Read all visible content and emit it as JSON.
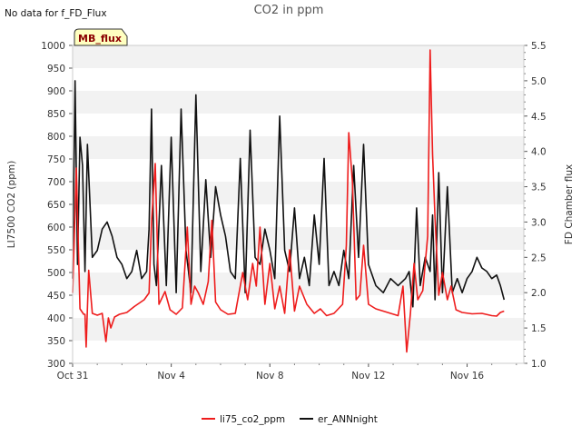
{
  "chart_data": {
    "type": "line",
    "title": "CO2 in ppm",
    "top_left_note": "No data for f_FD_Flux",
    "badge_label": "MB_flux",
    "ylabel": "LI7500 CO2 (ppm)",
    "y2label": "FD Chamber flux",
    "ylim": [
      300,
      1000
    ],
    "y2lim": [
      1.0,
      5.5
    ],
    "xlim": [
      0,
      18.3
    ],
    "yticks": [
      300,
      350,
      400,
      450,
      500,
      550,
      600,
      650,
      700,
      750,
      800,
      850,
      900,
      950,
      1000
    ],
    "y2ticks": [
      "1.0",
      "1.5",
      "2.0",
      "2.5",
      "3.0",
      "3.5",
      "4.0",
      "4.5",
      "5.0",
      "5.5"
    ],
    "xticks": [
      {
        "day": 0,
        "label": "Oct 31"
      },
      {
        "day": 4,
        "label": "Nov 4"
      },
      {
        "day": 8,
        "label": "Nov 8"
      },
      {
        "day": 12,
        "label": "Nov 12"
      },
      {
        "day": 16,
        "label": "Nov 16"
      }
    ],
    "legend_position": "bottom-center",
    "series": [
      {
        "name": "li75_co2_ppm",
        "axis": "left",
        "color": "#ee1c1c",
        "x": [
          0,
          0.15,
          0.3,
          0.45,
          0.5,
          0.55,
          0.65,
          0.8,
          1.0,
          1.2,
          1.35,
          1.45,
          1.55,
          1.7,
          1.9,
          2.2,
          2.5,
          2.9,
          3.1,
          3.2,
          3.35,
          3.5,
          3.75,
          3.95,
          4.2,
          4.45,
          4.65,
          4.8,
          4.95,
          5.1,
          5.3,
          5.5,
          5.65,
          5.8,
          6.0,
          6.3,
          6.6,
          6.9,
          7.1,
          7.3,
          7.45,
          7.6,
          7.8,
          8.0,
          8.2,
          8.4,
          8.6,
          8.8,
          9.0,
          9.2,
          9.5,
          9.8,
          10.05,
          10.3,
          10.6,
          10.95,
          11.1,
          11.2,
          11.35,
          11.5,
          11.65,
          11.8,
          12.0,
          12.3,
          12.6,
          12.9,
          13.2,
          13.4,
          13.55,
          13.7,
          13.85,
          14.0,
          14.2,
          14.4,
          14.5,
          14.6,
          14.7,
          14.85,
          15.0,
          15.2,
          15.35,
          15.55,
          15.8,
          16.2,
          16.6,
          17.0,
          17.2,
          17.35,
          17.5
        ],
        "values": [
          455,
          730,
          420,
          408,
          408,
          336,
          505,
          410,
          406,
          410,
          348,
          400,
          378,
          402,
          408,
          412,
          425,
          440,
          455,
          610,
          740,
          430,
          458,
          418,
          408,
          422,
          600,
          430,
          470,
          455,
          430,
          480,
          615,
          435,
          418,
          408,
          410,
          500,
          440,
          520,
          470,
          600,
          430,
          520,
          420,
          470,
          410,
          550,
          415,
          470,
          430,
          410,
          420,
          405,
          410,
          430,
          560,
          808,
          700,
          440,
          450,
          560,
          430,
          420,
          415,
          410,
          405,
          470,
          325,
          410,
          520,
          440,
          460,
          580,
          990,
          760,
          620,
          450,
          500,
          440,
          470,
          418,
          412,
          409,
          410,
          405,
          404,
          412,
          415
        ]
      },
      {
        "name": "er_ANNnight",
        "axis": "right",
        "color": "#111111",
        "x": [
          0,
          0.1,
          0.2,
          0.3,
          0.4,
          0.5,
          0.6,
          0.8,
          1.0,
          1.2,
          1.4,
          1.6,
          1.8,
          2.0,
          2.2,
          2.4,
          2.6,
          2.8,
          3.0,
          3.1,
          3.2,
          3.3,
          3.4,
          3.6,
          3.8,
          4.0,
          4.2,
          4.4,
          4.6,
          4.8,
          5.0,
          5.2,
          5.4,
          5.6,
          5.8,
          6.0,
          6.2,
          6.4,
          6.6,
          6.8,
          7.0,
          7.2,
          7.4,
          7.6,
          7.8,
          8.0,
          8.2,
          8.4,
          8.6,
          8.8,
          9.0,
          9.2,
          9.4,
          9.6,
          9.8,
          10.0,
          10.2,
          10.4,
          10.6,
          10.8,
          11.0,
          11.2,
          11.4,
          11.6,
          11.8,
          12.0,
          12.3,
          12.6,
          12.9,
          13.2,
          13.5,
          13.65,
          13.8,
          13.95,
          14.1,
          14.3,
          14.5,
          14.6,
          14.7,
          14.85,
          15.0,
          15.2,
          15.4,
          15.6,
          15.8,
          16.0,
          16.2,
          16.4,
          16.6,
          16.8,
          17.0,
          17.2,
          17.35,
          17.5
        ],
        "values": [
          2.2,
          5.0,
          2.4,
          4.2,
          3.8,
          2.3,
          4.1,
          2.5,
          2.6,
          2.9,
          3.0,
          2.8,
          2.5,
          2.4,
          2.2,
          2.3,
          2.6,
          2.2,
          2.3,
          2.9,
          4.6,
          2.4,
          2.1,
          3.8,
          2.1,
          4.2,
          2.0,
          4.6,
          2.6,
          2.0,
          4.8,
          2.3,
          3.6,
          2.5,
          3.5,
          3.1,
          2.8,
          2.3,
          2.2,
          3.9,
          2.0,
          4.3,
          2.5,
          2.4,
          2.9,
          2.6,
          2.2,
          4.5,
          2.6,
          2.3,
          3.2,
          2.2,
          2.5,
          2.1,
          3.1,
          2.4,
          3.9,
          2.1,
          2.3,
          2.1,
          2.6,
          2.2,
          3.8,
          2.5,
          4.1,
          2.4,
          2.1,
          2.0,
          2.2,
          2.1,
          2.2,
          2.3,
          1.8,
          3.2,
          2.1,
          2.5,
          2.3,
          3.1,
          1.9,
          3.7,
          2.0,
          3.5,
          2.0,
          2.2,
          2.0,
          2.2,
          2.3,
          2.5,
          2.35,
          2.3,
          2.2,
          2.25,
          2.1,
          1.9
        ]
      }
    ]
  }
}
